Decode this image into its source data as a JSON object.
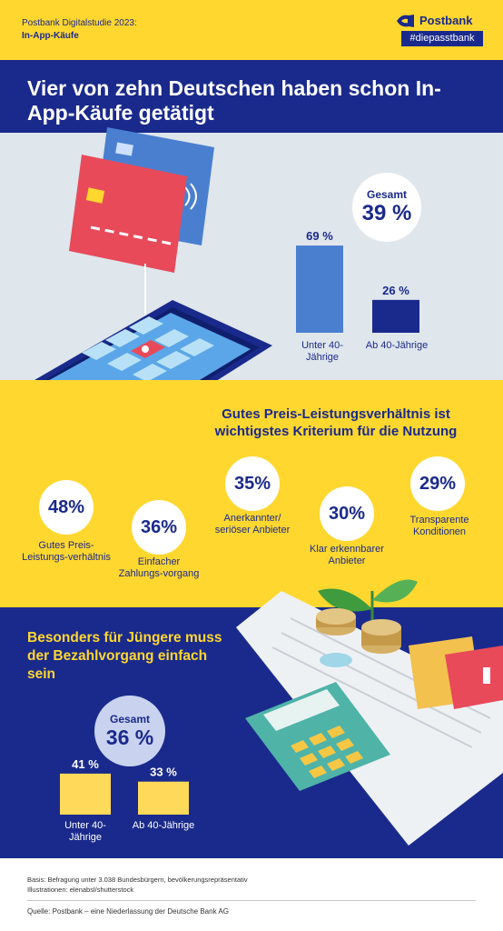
{
  "header": {
    "study": "Postbank Digitalstudie 2023:",
    "topic": "In-App-Käufe",
    "brand": "Postbank",
    "slogan": "#diepasstbank"
  },
  "title": "Vier von zehn Deutschen haben schon In-App-Käufe getätigt",
  "section2_title": "Gutes Preis-Leistungsverhältnis ist wichtigstes Kriterium für die Nutzung",
  "section3_title": "Besonders für Jüngere muss der Bezahlvorgang einfach sein",
  "colors": {
    "yellow": "#ffd72e",
    "navy": "#1a2a8c",
    "light_blue_bar": "#4a7fd0",
    "panel": "#dfe6ec",
    "bar_yellow": "#ffd95a"
  },
  "chart_data": [
    {
      "type": "bar",
      "gesamt_label": "Gesamt",
      "gesamt_value": "39 %",
      "categories": [
        "Unter 40-Jährige",
        "Ab 40-Jährige"
      ],
      "values": [
        69,
        26
      ],
      "value_labels": [
        "69 %",
        "26 %"
      ],
      "ylim": [
        0,
        100
      ]
    },
    {
      "type": "bar",
      "categories": [
        "Gutes Preis-Leistungs-verhältnis",
        "Einfacher Zahlungs-vorgang",
        "Anerkannter/ seriöser Anbieter",
        "Klar erkennbarer Anbieter",
        "Transparente Konditionen"
      ],
      "values": [
        48,
        36,
        35,
        30,
        29
      ],
      "value_labels": [
        "48%",
        "36%",
        "35%",
        "30%",
        "29%"
      ]
    },
    {
      "type": "bar",
      "gesamt_label": "Gesamt",
      "gesamt_value": "36 %",
      "categories": [
        "Unter 40-Jährige",
        "Ab 40-Jährige"
      ],
      "values": [
        41,
        33
      ],
      "value_labels": [
        "41 %",
        "33 %"
      ],
      "ylim": [
        0,
        100
      ]
    }
  ],
  "footer": {
    "basis": "Basis: Befragung unter 3.038 Bundesbürgern, bevölkerungsrepräsentativ",
    "illustrations": "Illustrationen: elenabsl/shutterstock",
    "source": "Quelle: Postbank – eine Niederlassung der Deutsche Bank AG"
  }
}
